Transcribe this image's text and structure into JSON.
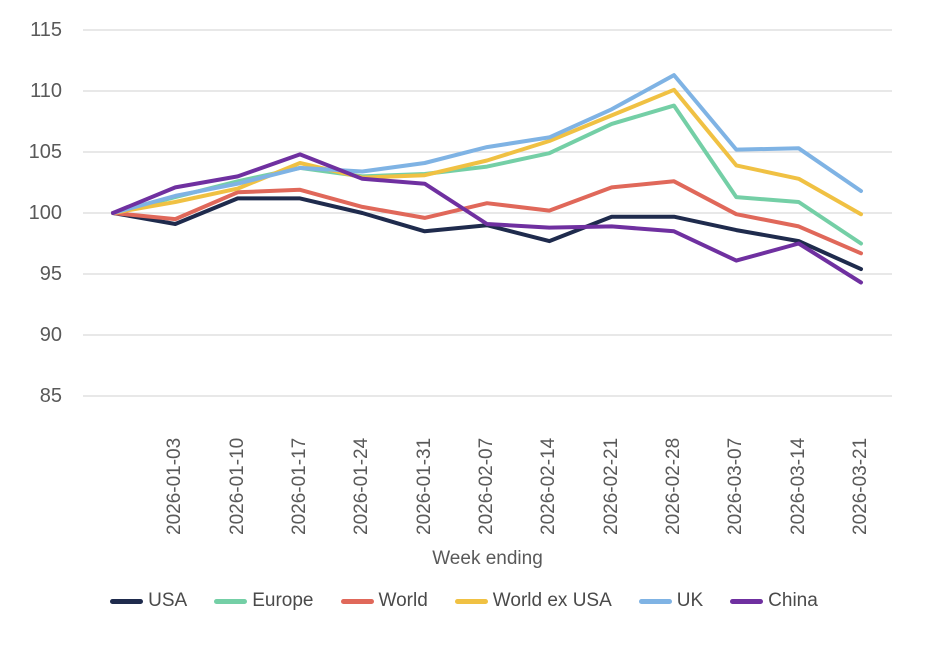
{
  "chart_data": {
    "type": "line",
    "title": "",
    "xlabel": "Week ending",
    "ylabel": "",
    "ylim": [
      85,
      115
    ],
    "ytick_step": 5,
    "grid": "horizontal",
    "legend_position": "bottom",
    "x_labels": [
      "",
      "2026-01-03",
      "2026-01-10",
      "2026-01-17",
      "2026-01-24",
      "2026-01-31",
      "2026-02-07",
      "2026-02-14",
      "2026-02-21",
      "2026-02-28",
      "2026-03-07",
      "2026-03-14",
      "2026-03-21"
    ],
    "series": [
      {
        "name": "USA",
        "color": "#1f2b4d",
        "values": [
          100,
          99.1,
          101.2,
          101.2,
          100.0,
          98.5,
          99.0,
          97.7,
          99.7,
          99.7,
          98.6,
          97.7,
          95.4
        ]
      },
      {
        "name": "Europe",
        "color": "#74cfa6",
        "values": [
          100,
          101.3,
          102.6,
          103.7,
          103.0,
          103.2,
          103.8,
          104.9,
          107.3,
          108.8,
          101.3,
          100.9,
          97.5
        ]
      },
      {
        "name": "World",
        "color": "#e0685a",
        "values": [
          100,
          99.5,
          101.7,
          101.9,
          100.5,
          99.6,
          100.8,
          100.2,
          102.1,
          102.6,
          99.9,
          98.9,
          96.7
        ]
      },
      {
        "name": "World ex USA",
        "color": "#f0c143",
        "values": [
          100,
          100.9,
          102.0,
          104.1,
          102.9,
          103.1,
          104.3,
          105.9,
          108.0,
          110.1,
          103.9,
          102.8,
          99.9
        ]
      },
      {
        "name": "UK",
        "color": "#7fb3e4",
        "values": [
          100,
          101.4,
          102.4,
          103.7,
          103.4,
          104.1,
          105.4,
          106.2,
          108.5,
          111.3,
          105.2,
          105.3,
          101.8
        ]
      },
      {
        "name": "China",
        "color": "#6f30a0",
        "values": [
          100,
          102.1,
          103.0,
          104.8,
          102.8,
          102.4,
          99.1,
          98.8,
          98.9,
          98.5,
          96.1,
          97.5,
          94.3
        ]
      }
    ],
    "colors": {
      "background": "#ffffff",
      "grid": "#d9d9d9",
      "axis_text": "#595959",
      "legend_text": "#4a4a4a"
    }
  }
}
